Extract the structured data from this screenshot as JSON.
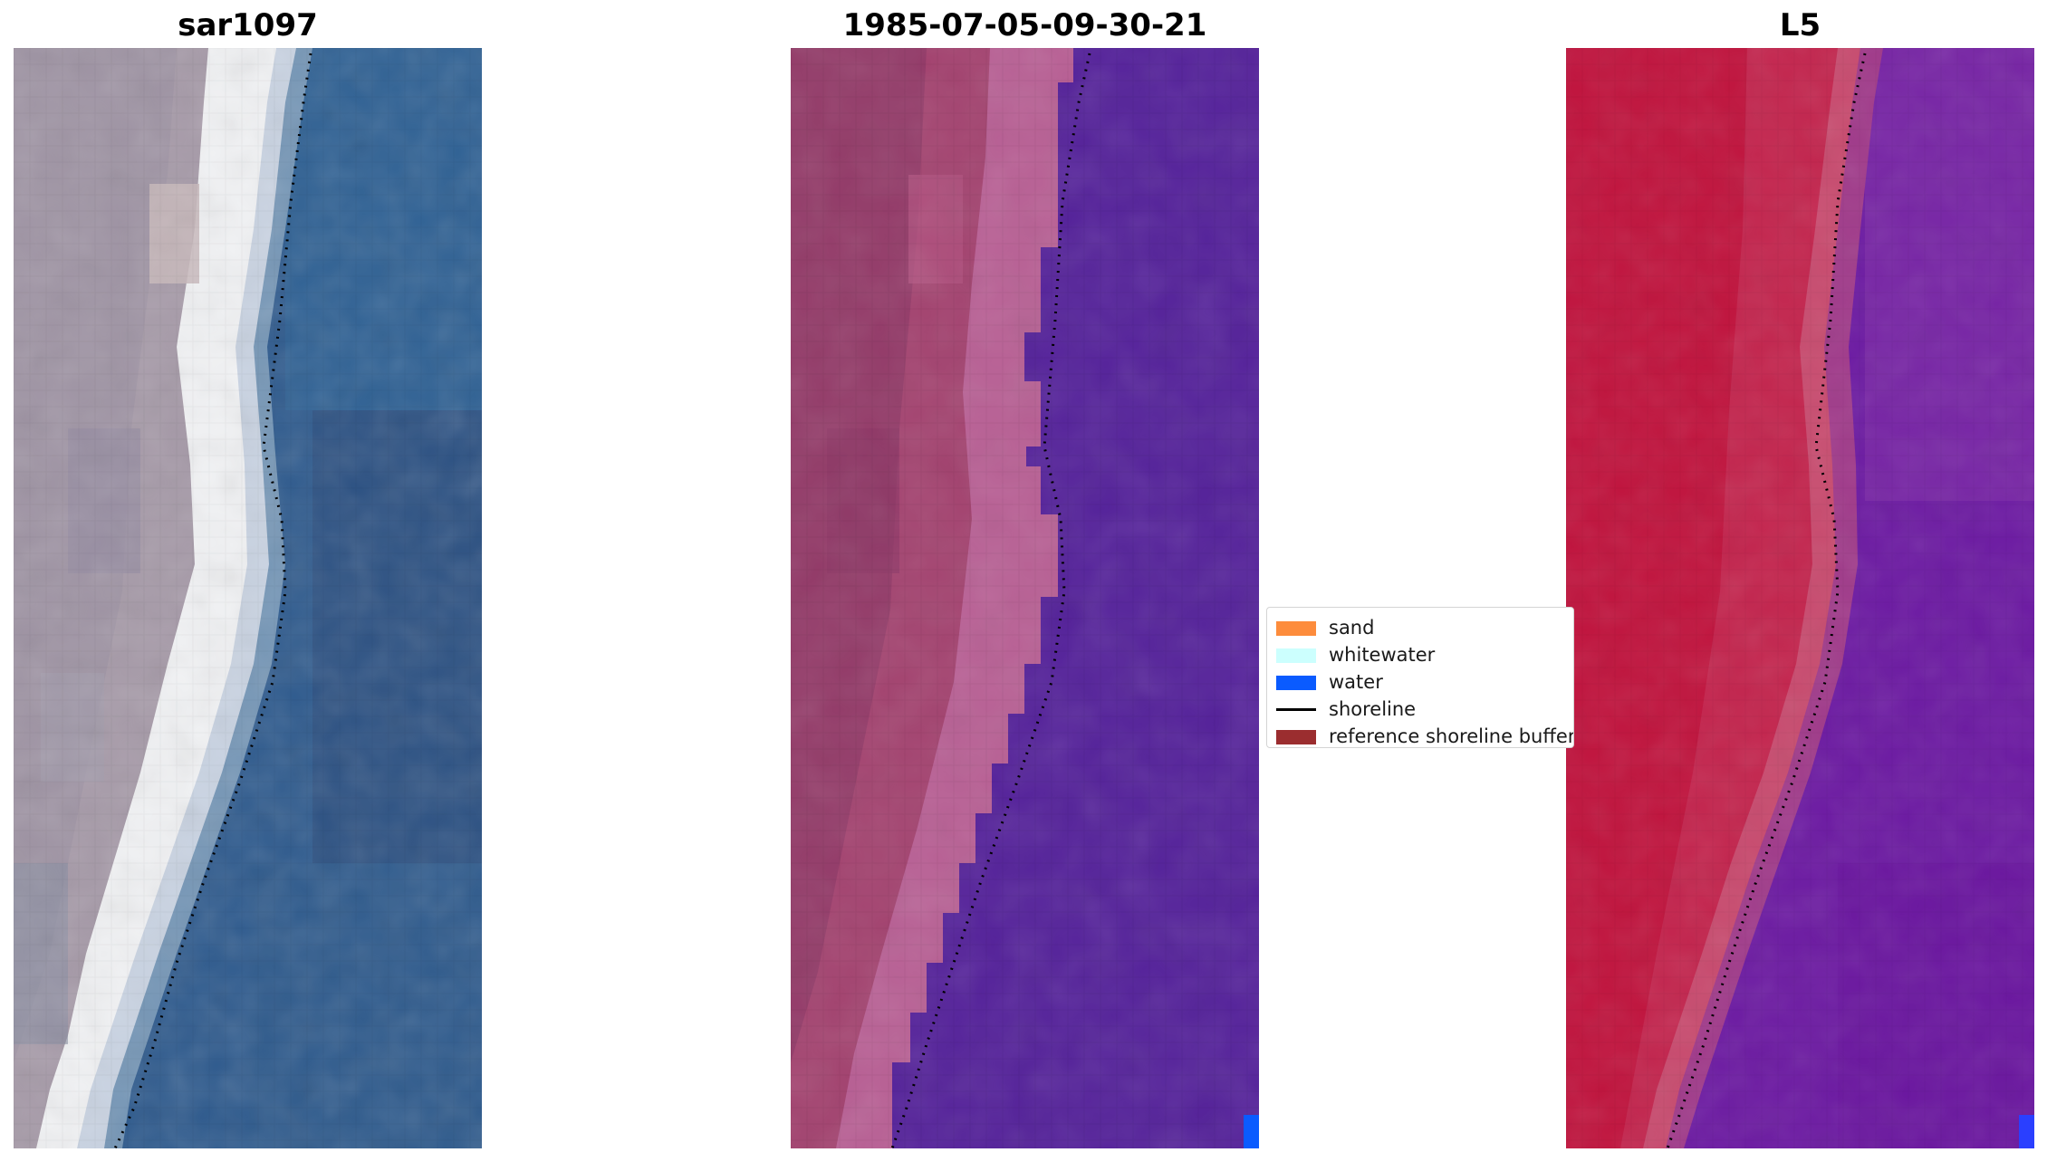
{
  "panels": [
    {
      "title": "sar1097"
    },
    {
      "title": "1985-07-05-09-30-21"
    },
    {
      "title": "L5"
    }
  ],
  "legend": {
    "items": [
      {
        "label": "sand",
        "color": "#fd8c3c",
        "kind": "patch"
      },
      {
        "label": "whitewater",
        "color": "#ccfffe",
        "kind": "patch"
      },
      {
        "label": "water",
        "color": "#0a5bff",
        "kind": "patch"
      },
      {
        "label": "shoreline",
        "color": "#000000",
        "kind": "line"
      },
      {
        "label": "reference shoreline buffer",
        "color": "#9b2d2f",
        "kind": "patch"
      }
    ]
  },
  "colors": {
    "rgb_land": "#a69aa8",
    "rgb_beach": "#f1f1f1",
    "rgb_water": "#2f5b8e",
    "class_land": "#a3426f",
    "class_water": "#54219a",
    "class_water_px": "#0a5bff",
    "ndwi_land": "#c0133d",
    "ndwi_water": "#6c1aa2"
  }
}
